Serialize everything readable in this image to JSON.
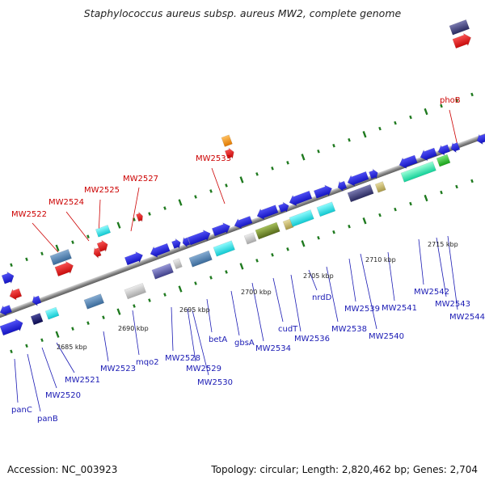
{
  "title": "Staphylococcus aureus subsp. aureus MW2, complete genome",
  "footer": {
    "accession": "Accession: NC_003923",
    "summary": "Topology: circular; Length: 2,820,462 bp; Genes: 2,704"
  },
  "colors": {
    "blue_gene": "#1a1adc",
    "red_gene": "#e01515",
    "highlight_label": "#cc0000",
    "normal_label": "#1a1ab4",
    "backbone": "#8c8c8c",
    "tick": "#1f7a1f"
  },
  "scale_labels": [
    {
      "text": "2685 kbp",
      "kbp": 2685
    },
    {
      "text": "2690 kbp",
      "kbp": 2690
    },
    {
      "text": "2695 kbp",
      "kbp": 2695
    },
    {
      "text": "2700 kbp",
      "kbp": 2700
    },
    {
      "text": "2705 kbp",
      "kbp": 2705
    },
    {
      "text": "2710 kbp",
      "kbp": 2710
    },
    {
      "text": "2715 kbp",
      "kbp": 2715
    }
  ],
  "top_labels": [
    {
      "text": "MW2522"
    },
    {
      "text": "MW2524"
    },
    {
      "text": "MW2525"
    },
    {
      "text": "MW2527"
    },
    {
      "text": "MW2533"
    },
    {
      "text": "phoB"
    }
  ],
  "bottom_labels": [
    {
      "text": "panC"
    },
    {
      "text": "panB"
    },
    {
      "text": "MW2520"
    },
    {
      "text": "MW2521"
    },
    {
      "text": "MW2523"
    },
    {
      "text": "mqo2"
    },
    {
      "text": "MW2528"
    },
    {
      "text": "MW2529"
    },
    {
      "text": "MW2530"
    },
    {
      "text": "betA"
    },
    {
      "text": "gbsA"
    },
    {
      "text": "MW2534"
    },
    {
      "text": "cudT"
    },
    {
      "text": "MW2536"
    },
    {
      "text": "nrdD"
    },
    {
      "text": "MW2538"
    },
    {
      "text": "MW2539"
    },
    {
      "text": "MW2540"
    },
    {
      "text": "MW2541"
    },
    {
      "text": "MW2542"
    },
    {
      "text": "MW2543"
    },
    {
      "text": "MW2544"
    }
  ]
}
